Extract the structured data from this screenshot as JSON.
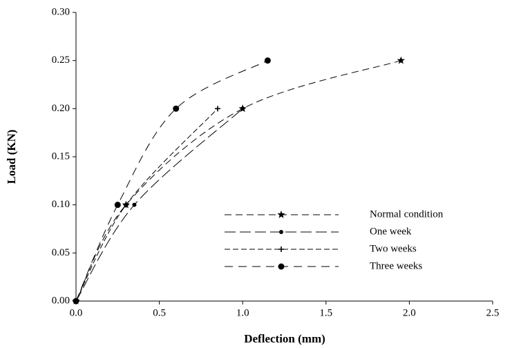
{
  "chart_data": {
    "type": "line",
    "x_label": "Deflection (mm)",
    "y_label": "Load (KN)",
    "xlim": [
      0,
      2.5
    ],
    "ylim": [
      0,
      0.3
    ],
    "xticks": [
      {
        "value": 0,
        "label": "0.0"
      },
      {
        "value": 0.5,
        "label": "0.5"
      },
      {
        "value": 1,
        "label": "1.0"
      },
      {
        "value": 1.5,
        "label": "1.5"
      },
      {
        "value": 2,
        "label": "2.0"
      },
      {
        "value": 2.5,
        "label": "2.5"
      }
    ],
    "yticks": [
      {
        "value": 0,
        "label": "0.00"
      },
      {
        "value": 0.05,
        "label": "0.05"
      },
      {
        "value": 0.1,
        "label": "0.10"
      },
      {
        "value": 0.15,
        "label": "0.15"
      },
      {
        "value": 0.2,
        "label": "0.20"
      },
      {
        "value": 0.25,
        "label": "0.25"
      },
      {
        "value": 0.3,
        "label": "0.30"
      }
    ],
    "grid": false,
    "legend": "inside",
    "series": [
      {
        "name": "Normal condition",
        "color": "#000000",
        "marker": "star",
        "x": [
          0,
          0.3,
          1.0,
          1.95
        ],
        "values": [
          0,
          0.1,
          0.2,
          0.25
        ]
      },
      {
        "name": "One week",
        "color": "#000000",
        "marker": "dot",
        "x": [
          0,
          0.35,
          1.0
        ],
        "values": [
          0,
          0.1,
          0.2
        ]
      },
      {
        "name": "Two weeks",
        "color": "#000000",
        "marker": "plus",
        "x": [
          0,
          0.3,
          0.85
        ],
        "values": [
          0,
          0.1,
          0.2
        ]
      },
      {
        "name": "Three weeks",
        "color": "#000000",
        "marker": "circle",
        "x": [
          0,
          0.25,
          0.6,
          1.15
        ],
        "values": [
          0,
          0.1,
          0.2,
          0.25
        ]
      }
    ]
  }
}
